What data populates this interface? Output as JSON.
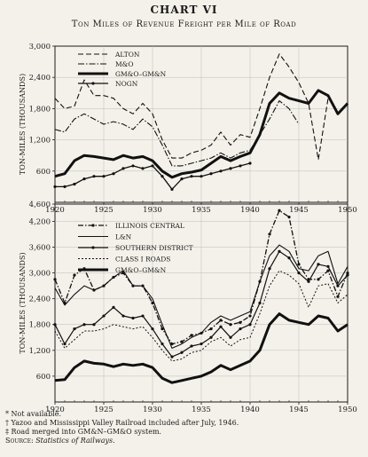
{
  "title": "CHART VI",
  "subtitle": "Ton Miles of Revenue Freight per Mile of Road",
  "footnotes": [
    "* Not available.",
    "† Yazoo and Mississippi Valley Railroad included after July, 1946.",
    "‡ Road merged into GM&N–GM&O system."
  ],
  "source_label": "Source:",
  "source_text": "Statistics of Railways.",
  "chart_data": [
    {
      "type": "line",
      "ylabel": "TON-MILES (THOUSANDS)",
      "xlabel": "",
      "xlim": [
        1920,
        1950
      ],
      "ylim": [
        0,
        3000
      ],
      "x_ticks": [
        1920,
        1925,
        1930,
        1935,
        1940,
        1945,
        1950
      ],
      "y_ticks": [
        600,
        1200,
        1800,
        2400,
        3000
      ],
      "legend_position": "top-left",
      "series": [
        {
          "name": "ALTON",
          "style": "dashed",
          "x": [
            1920,
            1921,
            1922,
            1923,
            1924,
            1925,
            1926,
            1927,
            1928,
            1929,
            1930,
            1931,
            1932,
            1933,
            1934,
            1935,
            1936,
            1937,
            1938,
            1939,
            1940,
            1941,
            1942,
            1943,
            1944,
            1945,
            1946,
            1947,
            1948
          ],
          "values": [
            2000,
            1800,
            1850,
            2350,
            2050,
            2050,
            2000,
            1800,
            1700,
            1900,
            1700,
            1200,
            850,
            850,
            950,
            1000,
            1100,
            1350,
            1100,
            1300,
            1250,
            1800,
            2400,
            2850,
            2600,
            2300,
            1900,
            820,
            2000
          ]
        },
        {
          "name": "M&O",
          "style": "dash-dot",
          "x": [
            1920,
            1921,
            1922,
            1923,
            1924,
            1925,
            1926,
            1927,
            1928,
            1929,
            1930,
            1931,
            1932,
            1933,
            1934,
            1935,
            1936,
            1937,
            1938,
            1939,
            1940,
            1941,
            1942,
            1943,
            1944,
            1945
          ],
          "values": [
            1400,
            1350,
            1600,
            1700,
            1600,
            1500,
            1550,
            1500,
            1400,
            1600,
            1450,
            1100,
            700,
            700,
            750,
            800,
            850,
            950,
            850,
            950,
            1000,
            1300,
            1600,
            1950,
            1800,
            1500
          ]
        },
        {
          "name": "GM&O–GM&N",
          "style": "solid-heavy",
          "x": [
            1920,
            1921,
            1922,
            1923,
            1924,
            1925,
            1926,
            1927,
            1928,
            1929,
            1930,
            1931,
            1932,
            1933,
            1934,
            1935,
            1936,
            1937,
            1938,
            1939,
            1940,
            1941,
            1942,
            1943,
            1944,
            1945,
            1946,
            1947,
            1948,
            1949,
            1950
          ],
          "values": [
            500,
            550,
            800,
            900,
            880,
            850,
            820,
            900,
            850,
            880,
            800,
            600,
            480,
            550,
            580,
            620,
            750,
            880,
            800,
            880,
            950,
            1300,
            1900,
            2100,
            2000,
            1950,
            1900,
            2150,
            2050,
            1700,
            1900
          ]
        },
        {
          "name": "NOGN",
          "style": "solid-dotted",
          "x": [
            1920,
            1921,
            1922,
            1923,
            1924,
            1925,
            1926,
            1927,
            1928,
            1929,
            1930,
            1931,
            1932,
            1933,
            1934,
            1935,
            1936,
            1937,
            1938,
            1939,
            1940
          ],
          "values": [
            300,
            300,
            350,
            450,
            500,
            500,
            550,
            650,
            700,
            650,
            700,
            500,
            250,
            450,
            500,
            500,
            550,
            600,
            650,
            700,
            750
          ]
        }
      ]
    },
    {
      "type": "line",
      "ylabel": "TON-MILES (THOUSANDS)",
      "xlabel": "",
      "xlim": [
        1920,
        1950
      ],
      "ylim": [
        0,
        4600
      ],
      "x_ticks": [
        1920,
        1925,
        1930,
        1935,
        1940,
        1945,
        1950
      ],
      "y_ticks": [
        600,
        1200,
        1800,
        2400,
        3000,
        3600,
        4200,
        4600
      ],
      "legend_position": "top-left",
      "series": [
        {
          "name": "ILLINOIS CENTRAL",
          "style": "dash-dot-marker",
          "x": [
            1920,
            1921,
            1922,
            1923,
            1924,
            1925,
            1926,
            1927,
            1928,
            1929,
            1930,
            1931,
            1932,
            1933,
            1934,
            1935,
            1936,
            1937,
            1938,
            1939,
            1940,
            1941,
            1942,
            1943,
            1944,
            1945,
            1946,
            1947,
            1948,
            1949,
            1950
          ],
          "values": [
            2850,
            2300,
            2950,
            3100,
            2600,
            2700,
            2900,
            3000,
            2700,
            2700,
            2300,
            1700,
            1350,
            1400,
            1550,
            1600,
            1700,
            1900,
            1800,
            1850,
            2000,
            2800,
            3900,
            4450,
            4300,
            3200,
            2850,
            2850,
            3050,
            2450,
            3000
          ]
        },
        {
          "name": "L&N",
          "style": "solid",
          "x": [
            1920,
            1921,
            1922,
            1923,
            1924,
            1925,
            1926,
            1927,
            1928,
            1929,
            1930,
            1931,
            1932,
            1933,
            1934,
            1935,
            1936,
            1937,
            1938,
            1939,
            1940,
            1941,
            1942,
            1943,
            1944,
            1945,
            1946,
            1947,
            1948,
            1949,
            1950
          ],
          "values": [
            2650,
            2250,
            2500,
            2700,
            2600,
            2700,
            2900,
            3050,
            2700,
            2700,
            2400,
            1800,
            1250,
            1350,
            1500,
            1600,
            1850,
            2000,
            1900,
            2000,
            2100,
            2800,
            3400,
            3650,
            3500,
            3100,
            3050,
            3400,
            3500,
            2750,
            3150
          ]
        },
        {
          "name": "SOUTHERN DISTRICT",
          "style": "solid-marker",
          "x": [
            1920,
            1921,
            1922,
            1923,
            1924,
            1925,
            1926,
            1927,
            1928,
            1929,
            1930,
            1931,
            1932,
            1933,
            1934,
            1935,
            1936,
            1937,
            1938,
            1939,
            1940,
            1941,
            1942,
            1943,
            1944,
            1945,
            1946,
            1947,
            1948,
            1949,
            1950
          ],
          "values": [
            1800,
            1350,
            1700,
            1800,
            1800,
            2000,
            2200,
            2000,
            1950,
            2000,
            1700,
            1350,
            1050,
            1150,
            1300,
            1350,
            1500,
            1750,
            1500,
            1700,
            1800,
            2300,
            3100,
            3500,
            3350,
            3000,
            2800,
            3200,
            3150,
            2700,
            2950
          ]
        },
        {
          "name": "CLASS I ROADS",
          "style": "dotted",
          "x": [
            1920,
            1921,
            1922,
            1923,
            1924,
            1925,
            1926,
            1927,
            1928,
            1929,
            1930,
            1931,
            1932,
            1933,
            1934,
            1935,
            1936,
            1937,
            1938,
            1939,
            1940,
            1941,
            1942,
            1943,
            1944,
            1945,
            1946,
            1947,
            1948,
            1949,
            1950
          ],
          "values": [
            1650,
            1250,
            1450,
            1650,
            1650,
            1700,
            1800,
            1750,
            1700,
            1750,
            1500,
            1200,
            950,
            1000,
            1150,
            1200,
            1400,
            1500,
            1300,
            1450,
            1500,
            2050,
            2700,
            3050,
            2950,
            2750,
            2200,
            2700,
            2750,
            2300,
            2500
          ]
        },
        {
          "name": "GM&O–GM&N",
          "style": "solid-heavy",
          "x": [
            1920,
            1921,
            1922,
            1923,
            1924,
            1925,
            1926,
            1927,
            1928,
            1929,
            1930,
            1931,
            1932,
            1933,
            1934,
            1935,
            1936,
            1937,
            1938,
            1939,
            1940,
            1941,
            1942,
            1943,
            1944,
            1945,
            1946,
            1947,
            1948,
            1949,
            1950
          ],
          "values": [
            500,
            520,
            800,
            950,
            900,
            880,
            820,
            880,
            850,
            880,
            800,
            550,
            450,
            500,
            550,
            600,
            700,
            850,
            750,
            850,
            950,
            1200,
            1800,
            2050,
            1900,
            1850,
            1800,
            2000,
            1950,
            1650,
            1800
          ]
        }
      ]
    }
  ]
}
